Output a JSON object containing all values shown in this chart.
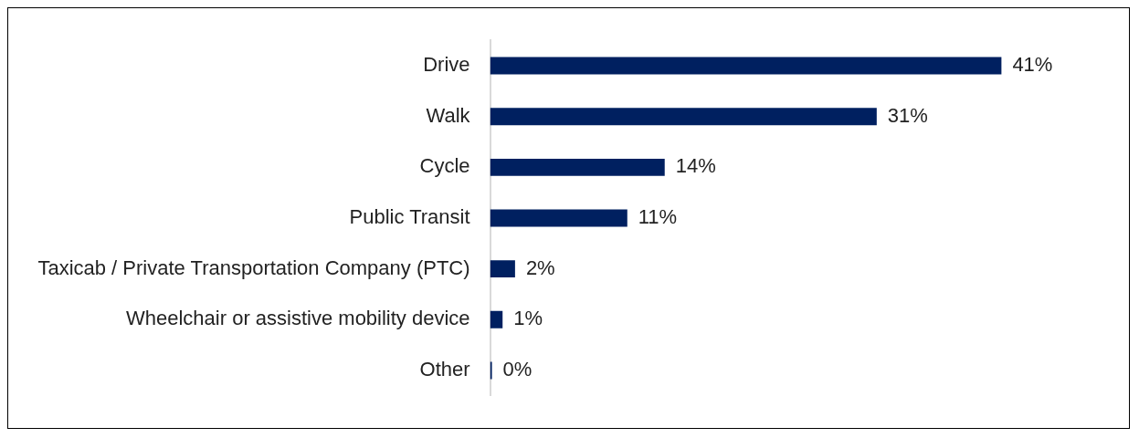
{
  "chart_data": {
    "type": "bar",
    "orientation": "horizontal",
    "categories": [
      "Drive",
      "Walk",
      "Cycle",
      "Public Transit",
      "Taxicab / Private Transportation Company (PTC)",
      "Wheelchair or assistive mobility device",
      "Other"
    ],
    "values": [
      41,
      31,
      14,
      11,
      2,
      1,
      0
    ],
    "value_labels": [
      "41%",
      "31%",
      "14%",
      "11%",
      "2%",
      "1%",
      "0%"
    ],
    "color": "#002060",
    "legend": false
  }
}
